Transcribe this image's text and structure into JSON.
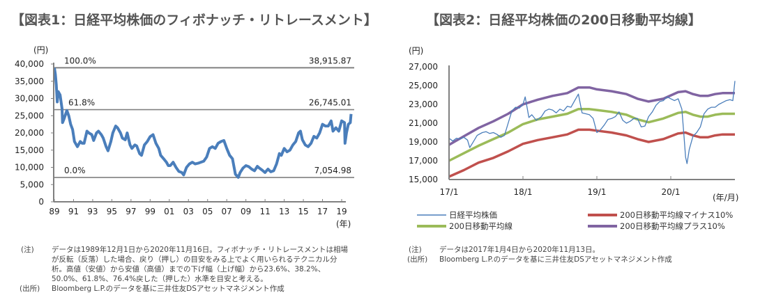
{
  "chart_data": [
    {
      "type": "line",
      "title": "【図表1：日経平均株価のフィボナッチ・リトレースメント】",
      "ylabel": "(円)",
      "xlabel": "(年)",
      "ylim": [
        0,
        40000
      ],
      "yticks": [
        "0",
        "5,000",
        "10,000",
        "15,000",
        "20,000",
        "25,000",
        "30,000",
        "35,000",
        "40,000"
      ],
      "ytick_values": [
        0,
        5000,
        10000,
        15000,
        20000,
        25000,
        30000,
        35000,
        40000
      ],
      "xlim": [
        1989.9,
        2020.9
      ],
      "xticks": [
        "89",
        "91",
        "93",
        "95",
        "97",
        "99",
        "01",
        "03",
        "05",
        "07",
        "09",
        "11",
        "13",
        "15",
        "17",
        "19"
      ],
      "xtick_values": [
        1989.9,
        1991.9,
        1993.9,
        1995.9,
        1997.9,
        1999.9,
        2001.9,
        2003.9,
        2005.9,
        2007.9,
        2009.9,
        2011.9,
        2013.9,
        2015.9,
        2017.9,
        2019.9
      ],
      "grid": false,
      "levels": [
        {
          "label": "100.0%",
          "value": 38915.87,
          "value_label": "38,915.87"
        },
        {
          "label": "61.8%",
          "value": 26745.01,
          "value_label": "26,745.01"
        },
        {
          "label": "0.0%",
          "value": 7054.98,
          "value_label": "7,054.98"
        }
      ],
      "series": [
        {
          "name": "日経平均株価",
          "color": "#4a7ebb",
          "x": [
            1989.9,
            1990.0,
            1990.1,
            1990.2,
            1990.3,
            1990.5,
            1990.7,
            1990.75,
            1990.9,
            1991.2,
            1991.4,
            1991.6,
            1991.8,
            1992.0,
            1992.3,
            1992.6,
            1992.8,
            1993.0,
            1993.3,
            1993.5,
            1993.8,
            1994.0,
            1994.3,
            1994.5,
            1994.8,
            1995.0,
            1995.3,
            1995.5,
            1995.8,
            1996.0,
            1996.3,
            1996.5,
            1996.8,
            1997.0,
            1997.3,
            1997.5,
            1997.8,
            1998.0,
            1998.3,
            1998.5,
            1998.8,
            1999.0,
            1999.3,
            1999.6,
            1999.9,
            2000.2,
            2000.5,
            2000.8,
            2001.0,
            2001.3,
            2001.6,
            2001.8,
            2002.0,
            2002.3,
            2002.6,
            2002.9,
            2003.2,
            2003.4,
            2003.7,
            2004.0,
            2004.3,
            2004.6,
            2004.9,
            2005.2,
            2005.5,
            2005.8,
            2006.1,
            2006.4,
            2006.7,
            2007.0,
            2007.3,
            2007.6,
            2007.9,
            2008.2,
            2008.5,
            2008.8,
            2009.1,
            2009.3,
            2009.6,
            2009.9,
            2010.2,
            2010.5,
            2010.8,
            2011.1,
            2011.3,
            2011.6,
            2011.9,
            2012.2,
            2012.5,
            2012.8,
            2013.1,
            2013.4,
            2013.6,
            2013.9,
            2014.2,
            2014.5,
            2014.8,
            2015.1,
            2015.4,
            2015.6,
            2015.8,
            2016.1,
            2016.4,
            2016.7,
            2017.0,
            2017.3,
            2017.6,
            2017.9,
            2018.2,
            2018.5,
            2018.8,
            2019.0,
            2019.3,
            2019.6,
            2019.9,
            2020.2,
            2020.25,
            2020.4,
            2020.6,
            2020.8,
            2020.88
          ],
          "values": [
            38900,
            37000,
            34000,
            29000,
            32000,
            31000,
            27000,
            23000,
            24000,
            26500,
            25000,
            22500,
            21000,
            17500,
            16000,
            17500,
            17000,
            17000,
            20500,
            20000,
            19500,
            17800,
            20000,
            20500,
            19500,
            18500,
            16000,
            14800,
            17500,
            20000,
            22000,
            21500,
            20000,
            18500,
            18000,
            20000,
            16500,
            15500,
            16500,
            16200,
            14000,
            13500,
            16500,
            17500,
            18900,
            19500,
            17000,
            15500,
            13500,
            12500,
            11500,
            10500,
            10500,
            11500,
            10000,
            8800,
            8500,
            7800,
            10000,
            11000,
            11500,
            11000,
            11200,
            11500,
            11800,
            13000,
            15500,
            16000,
            15500,
            17000,
            17500,
            17800,
            15500,
            13500,
            12500,
            8000,
            7100,
            8500,
            9800,
            10500,
            10200,
            9500,
            9000,
            10300,
            9800,
            9200,
            8500,
            9500,
            8700,
            9000,
            11000,
            14000,
            13500,
            15500,
            14500,
            15000,
            16500,
            17500,
            20000,
            20500,
            18000,
            16500,
            16000,
            17000,
            19000,
            18500,
            20000,
            22500,
            22000,
            22000,
            23500,
            20500,
            21500,
            20500,
            23500,
            23000,
            17000,
            20000,
            22500,
            23000,
            25500
          ]
        }
      ]
    },
    {
      "type": "line",
      "title": "【図表2：日経平均株価の200日移動平均線】",
      "ylabel": "(円)",
      "xlabel": "(年/月)",
      "ylim": [
        15000,
        27000
      ],
      "yticks": [
        "15,000",
        "17,000",
        "19,000",
        "21,000",
        "23,000",
        "25,000",
        "27,000"
      ],
      "ytick_values": [
        15000,
        17000,
        19000,
        21000,
        23000,
        25000,
        27000
      ],
      "xlim": [
        2017.0,
        2020.87
      ],
      "xticks": [
        "17/1",
        "18/1",
        "19/1",
        "20/1"
      ],
      "xtick_values": [
        2017.0,
        2018.0,
        2019.0,
        2020.0
      ],
      "grid": false,
      "legend_position": "bottom",
      "series": [
        {
          "name": "日経平均株価",
          "color": "#4a7ebb",
          "x": [
            2017.0,
            2017.05,
            2017.1,
            2017.15,
            2017.2,
            2017.25,
            2017.28,
            2017.32,
            2017.38,
            2017.45,
            2017.5,
            2017.55,
            2017.6,
            2017.65,
            2017.7,
            2017.75,
            2017.8,
            2017.85,
            2017.9,
            2017.95,
            2018.0,
            2018.03,
            2018.08,
            2018.12,
            2018.18,
            2018.25,
            2018.3,
            2018.35,
            2018.4,
            2018.45,
            2018.5,
            2018.55,
            2018.6,
            2018.65,
            2018.7,
            2018.75,
            2018.8,
            2018.85,
            2018.9,
            2018.95,
            2019.0,
            2019.05,
            2019.1,
            2019.15,
            2019.2,
            2019.25,
            2019.3,
            2019.35,
            2019.4,
            2019.45,
            2019.5,
            2019.55,
            2019.6,
            2019.65,
            2019.7,
            2019.75,
            2019.8,
            2019.85,
            2019.9,
            2019.95,
            2020.0,
            2020.05,
            2020.1,
            2020.15,
            2020.18,
            2020.2,
            2020.22,
            2020.25,
            2020.3,
            2020.35,
            2020.4,
            2020.45,
            2020.5,
            2020.55,
            2020.6,
            2020.65,
            2020.7,
            2020.75,
            2020.8,
            2020.84,
            2020.87
          ],
          "values": [
            19400,
            19100,
            19400,
            19300,
            19500,
            19200,
            18400,
            18900,
            19700,
            20000,
            20100,
            19900,
            20000,
            19800,
            19500,
            19700,
            21000,
            22300,
            22700,
            22600,
            23000,
            23800,
            21600,
            21900,
            21300,
            21700,
            22300,
            22500,
            22400,
            22100,
            22500,
            22300,
            22800,
            22700,
            23400,
            24100,
            22100,
            22000,
            21900,
            21500,
            20000,
            20300,
            20800,
            21400,
            21500,
            21700,
            22200,
            21300,
            21000,
            21200,
            21500,
            21500,
            20600,
            20700,
            21700,
            22200,
            22900,
            23300,
            23400,
            23800,
            23600,
            23400,
            23600,
            22500,
            19500,
            17400,
            16700,
            18200,
            19600,
            20000,
            20600,
            22000,
            22500,
            22700,
            22700,
            23000,
            23200,
            23400,
            23500,
            23400,
            25500
          ]
        },
        {
          "name": "200日移動平均線マイナス10%",
          "color": "#c0504d",
          "x": [
            2017.0,
            2017.2,
            2017.4,
            2017.6,
            2017.8,
            2018.0,
            2018.2,
            2018.4,
            2018.6,
            2018.75,
            2018.9,
            2019.0,
            2019.2,
            2019.4,
            2019.55,
            2019.7,
            2019.9,
            2020.1,
            2020.2,
            2020.3,
            2020.4,
            2020.5,
            2020.6,
            2020.7,
            2020.87
          ],
          "values": [
            15300,
            16000,
            16800,
            17300,
            18000,
            18800,
            19200,
            19500,
            19800,
            20300,
            20300,
            20200,
            20000,
            19700,
            19300,
            19000,
            19300,
            19900,
            20000,
            19700,
            19500,
            19500,
            19700,
            19800,
            19800
          ]
        },
        {
          "name": "200日移動平均線",
          "color": "#9bbb59",
          "x": [
            2017.0,
            2017.2,
            2017.4,
            2017.6,
            2017.8,
            2018.0,
            2018.2,
            2018.4,
            2018.6,
            2018.75,
            2018.9,
            2019.0,
            2019.2,
            2019.4,
            2019.55,
            2019.7,
            2019.9,
            2020.1,
            2020.2,
            2020.3,
            2020.4,
            2020.5,
            2020.6,
            2020.7,
            2020.87
          ],
          "values": [
            17000,
            17800,
            18600,
            19300,
            20000,
            20900,
            21400,
            21700,
            22000,
            22500,
            22500,
            22400,
            22200,
            21900,
            21400,
            21100,
            21500,
            22100,
            22200,
            21900,
            21700,
            21700,
            21900,
            22000,
            22000
          ]
        },
        {
          "name": "200日移動平均線プラス10%",
          "color": "#8064a2",
          "x": [
            2017.0,
            2017.2,
            2017.4,
            2017.6,
            2017.8,
            2018.0,
            2018.2,
            2018.4,
            2018.6,
            2018.75,
            2018.9,
            2019.0,
            2019.2,
            2019.4,
            2019.55,
            2019.7,
            2019.9,
            2020.1,
            2020.2,
            2020.3,
            2020.4,
            2020.5,
            2020.6,
            2020.7,
            2020.87
          ],
          "values": [
            18700,
            19600,
            20500,
            21200,
            22000,
            23000,
            23500,
            23900,
            24200,
            24800,
            24800,
            24600,
            24400,
            24100,
            23600,
            23300,
            23600,
            24300,
            24400,
            24100,
            23900,
            23900,
            24100,
            24200,
            24200
          ]
        }
      ]
    }
  ],
  "notes": {
    "chart1": {
      "note_label": "(注)",
      "note_lines": [
        "データは1989年12月1日から2020年11月16日。フィボナッチ・リトレースメントは相場",
        "が反転（反落）した場合、戻り（押し）の目安をみる上でよく用いられるテクニカル分",
        "析。高値（安値）から安値（高値）までの下げ幅（上げ幅）から23.6%、38.2%、",
        "50.0%、61.8%、76.4%戻した（押した）水準を目安と考える。"
      ],
      "source_label": "(出所)",
      "source_text": "Bloomberg L.P.のデータを基に三井住友DSアセットマネジメント作成"
    },
    "chart2": {
      "note_label": "(注)",
      "note_text": "データは2017年1月4日から2020年11月13日。",
      "source_label": "(出所)",
      "source_text": "Bloomberg L.P.のデータを基に三井住友DSアセットマネジメント作成"
    }
  }
}
